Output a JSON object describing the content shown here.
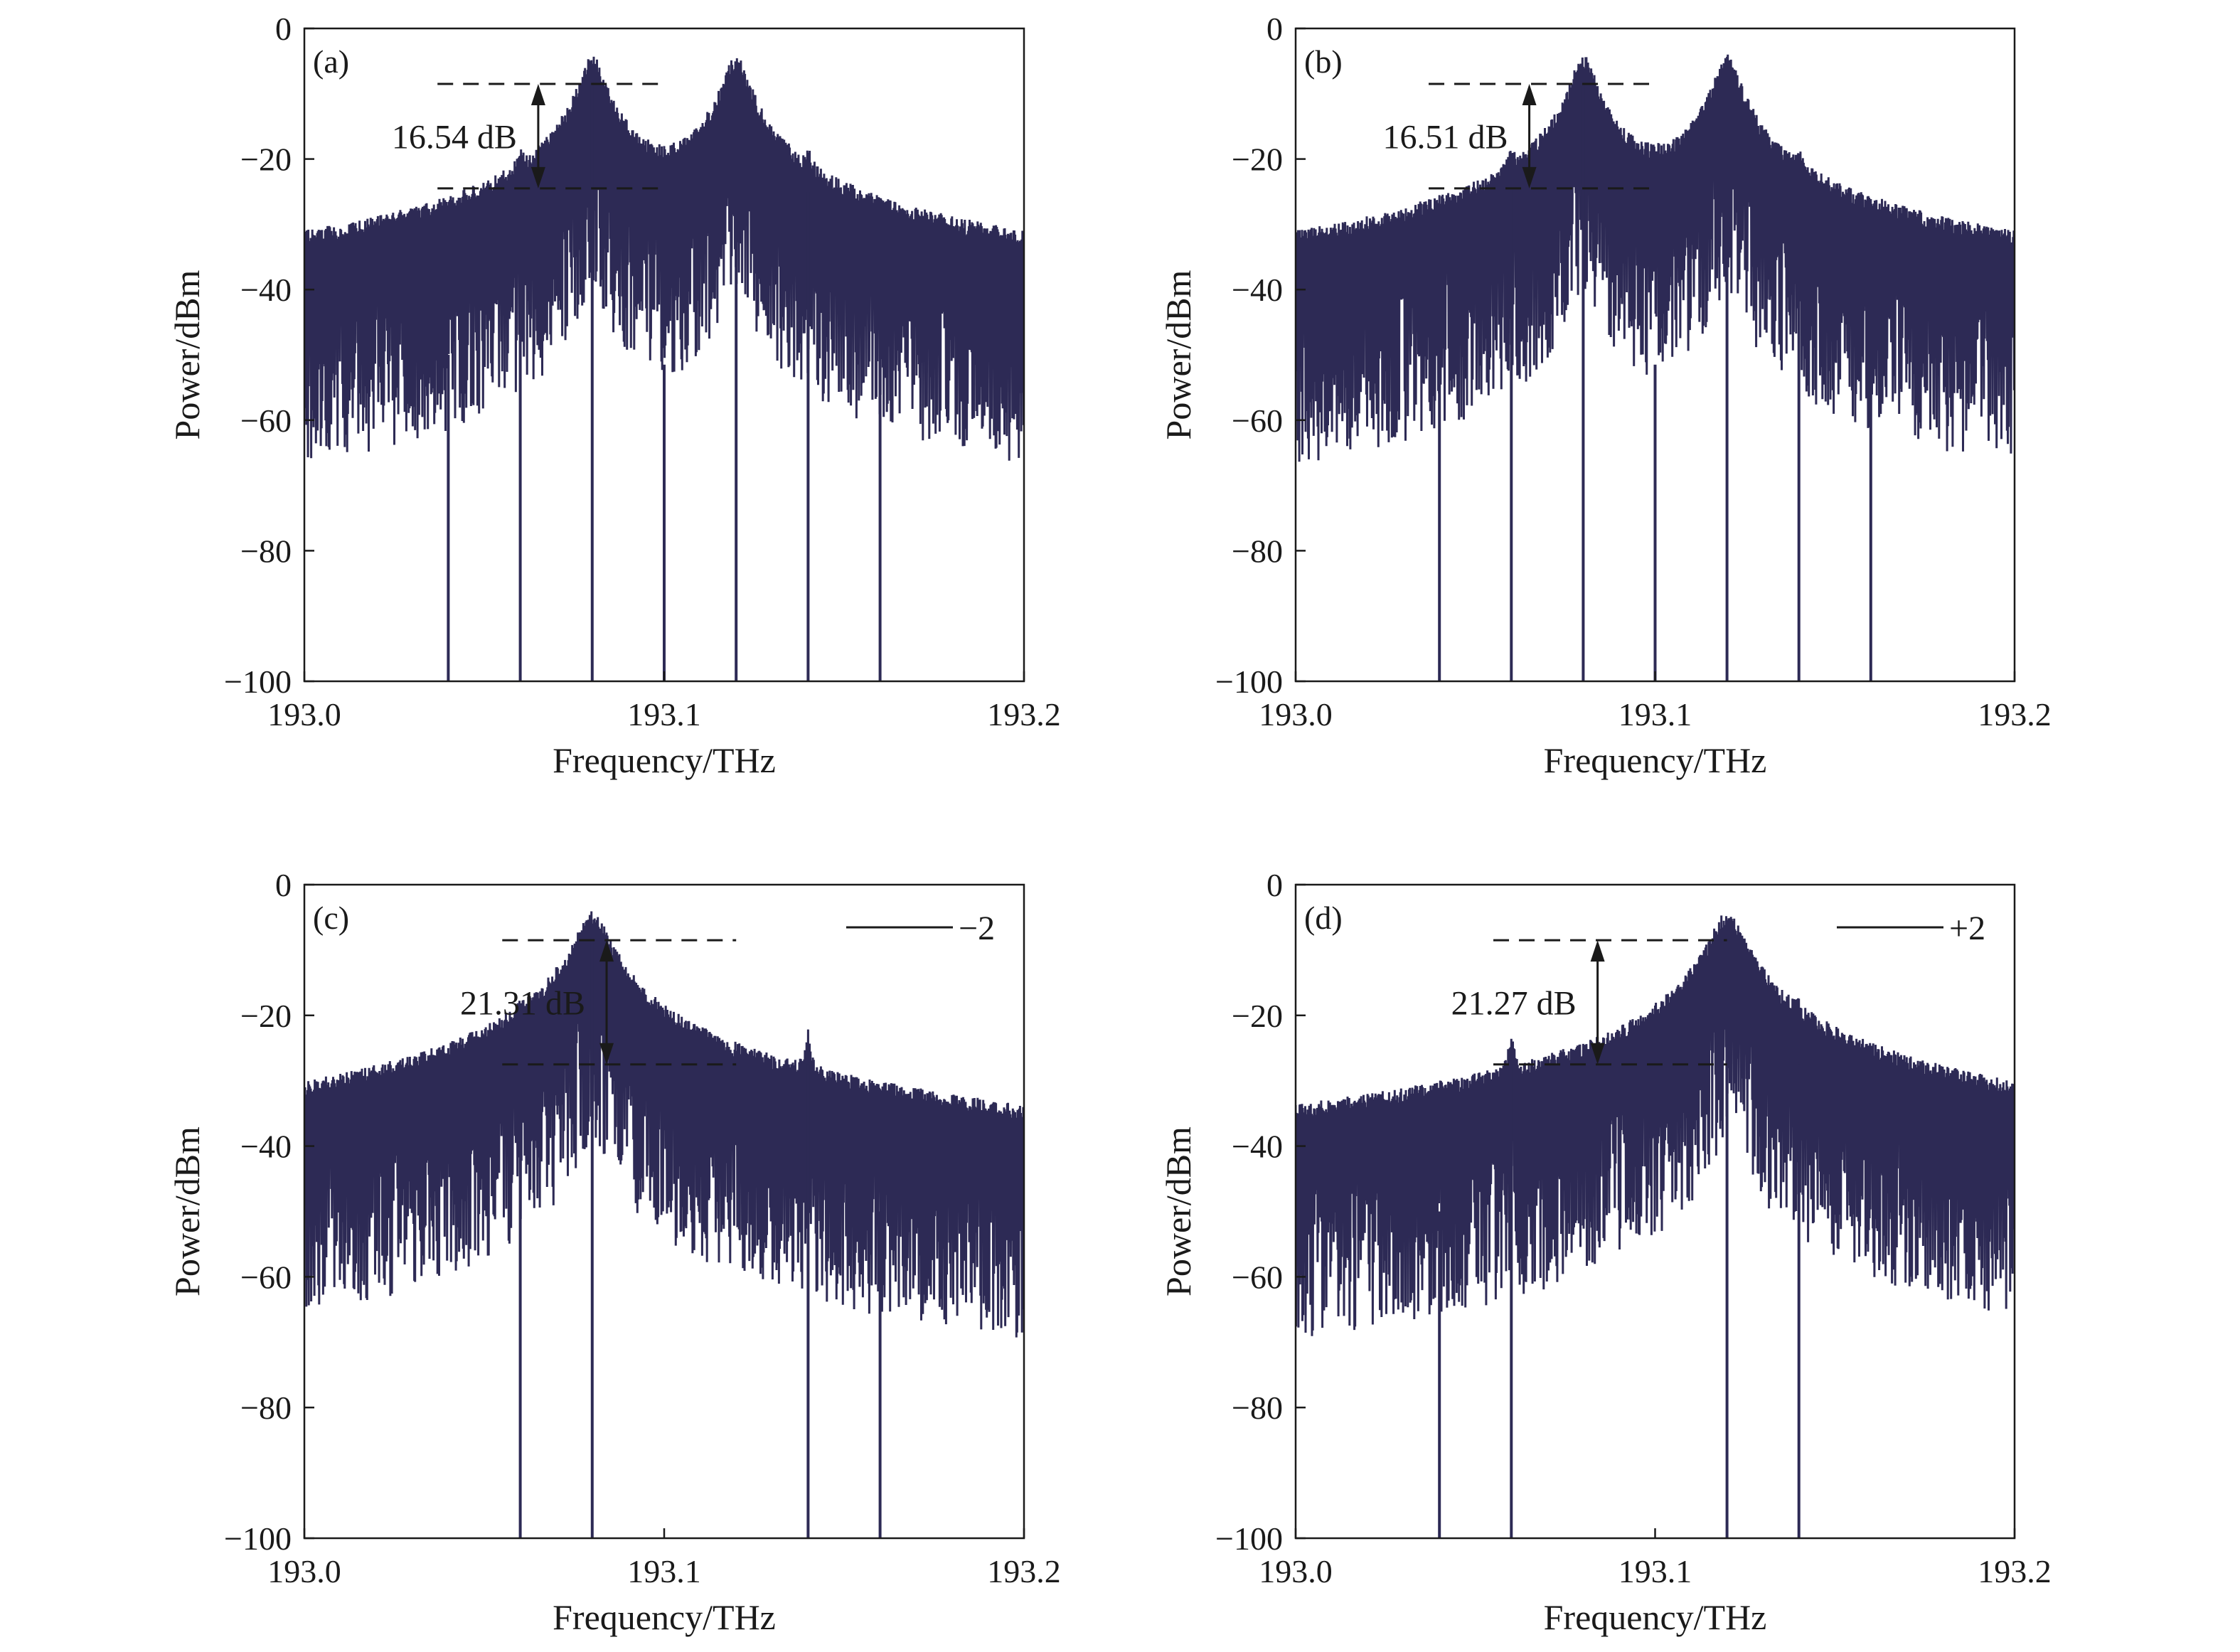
{
  "colors": {
    "spectrum": "#2d2a55",
    "axis": "#1a1a1a",
    "background": "#ffffff"
  },
  "chart_data": [
    {
      "type": "line",
      "panel_label": "(a)",
      "xlabel": "Frequency/THz",
      "ylabel": "Power/dBm",
      "xlim": [
        193.0,
        193.2
      ],
      "ylim": [
        -100,
        0
      ],
      "xticks": [
        "193.0",
        "193.1",
        "193.2"
      ],
      "yticks": [
        "0",
        "−20",
        "−40",
        "−60",
        "−80",
        "−100"
      ],
      "noise_floor_dBm": -85,
      "peaks": [
        {
          "x": 193.04,
          "y": -50,
          "width": 0.0003
        },
        {
          "x": 193.06,
          "y": -25,
          "width": 0.0006
        },
        {
          "x": 193.08,
          "y": -8,
          "width": 0.003
        },
        {
          "x": 193.1,
          "y": -51.5,
          "width": 0.0003
        },
        {
          "x": 193.12,
          "y": -8,
          "width": 0.003
        },
        {
          "x": 193.14,
          "y": -25,
          "width": 0.0006
        },
        {
          "x": 193.16,
          "y": -50,
          "width": 0.0003
        }
      ],
      "annotation": {
        "text": "16.54 dB",
        "upper_dBm": -8.5,
        "lower_dBm": -24.5,
        "x_from": 193.037,
        "x_to": 193.1,
        "arrow_x": 193.065
      },
      "legend": null
    },
    {
      "type": "line",
      "panel_label": "(b)",
      "xlabel": "Frequency/THz",
      "ylabel": "Power/dBm",
      "xlim": [
        193.0,
        193.2
      ],
      "ylim": [
        -100,
        0
      ],
      "xticks": [
        "193.0",
        "193.1",
        "193.2"
      ],
      "yticks": [
        "0",
        "−20",
        "−40",
        "−60",
        "−80",
        "−100"
      ],
      "noise_floor_dBm": -85,
      "peaks": [
        {
          "x": 193.04,
          "y": -50,
          "width": 0.0003
        },
        {
          "x": 193.06,
          "y": -24.5,
          "width": 0.0006
        },
        {
          "x": 193.08,
          "y": -8,
          "width": 0.003
        },
        {
          "x": 193.1,
          "y": -51.5,
          "width": 0.0003
        },
        {
          "x": 193.12,
          "y": -8,
          "width": 0.003
        },
        {
          "x": 193.14,
          "y": -24.5,
          "width": 0.0006
        },
        {
          "x": 193.16,
          "y": -50,
          "width": 0.0003
        }
      ],
      "annotation": {
        "text": "16.51 dB",
        "upper_dBm": -8.5,
        "lower_dBm": -24.5,
        "x_from": 193.037,
        "x_to": 193.1,
        "arrow_x": 193.065
      },
      "legend": null
    },
    {
      "type": "line",
      "panel_label": "(c)",
      "xlabel": "Frequency/THz",
      "ylabel": "Power/dBm",
      "xlim": [
        193.0,
        193.2
      ],
      "ylim": [
        -100,
        0
      ],
      "xticks": [
        "193.0",
        "193.1",
        "193.2"
      ],
      "yticks": [
        "0",
        "−20",
        "−40",
        "−60",
        "−80",
        "−100"
      ],
      "noise_floor_dBm": -78,
      "peaks": [
        {
          "x": 193.06,
          "y": -27.5,
          "width": 0.0006
        },
        {
          "x": 193.08,
          "y": -8,
          "width": 0.004
        },
        {
          "x": 193.14,
          "y": -27.5,
          "width": 0.0006
        },
        {
          "x": 193.16,
          "y": -50,
          "width": 0.0003
        }
      ],
      "annotation": {
        "text": "21.31 dB",
        "upper_dBm": -8.5,
        "lower_dBm": -27.5,
        "x_from": 193.055,
        "x_to": 193.12,
        "arrow_x": 193.084
      },
      "legend": {
        "text": "−2"
      }
    },
    {
      "type": "line",
      "panel_label": "(d)",
      "xlabel": "Frequency/THz",
      "ylabel": "Power/dBm",
      "xlim": [
        193.0,
        193.2
      ],
      "ylim": [
        -100,
        0
      ],
      "xticks": [
        "193.0",
        "193.1",
        "193.2"
      ],
      "yticks": [
        "0",
        "−20",
        "−40",
        "−60",
        "−80",
        "−100"
      ],
      "noise_floor_dBm": -78,
      "peaks": [
        {
          "x": 193.04,
          "y": -50,
          "width": 0.0003
        },
        {
          "x": 193.06,
          "y": -27.5,
          "width": 0.0006
        },
        {
          "x": 193.12,
          "y": -8,
          "width": 0.004
        },
        {
          "x": 193.14,
          "y": -27.5,
          "width": 0.0006
        }
      ],
      "annotation": {
        "text": "21.27 dB",
        "upper_dBm": -8.5,
        "lower_dBm": -27.5,
        "x_from": 193.055,
        "x_to": 193.12,
        "arrow_x": 193.084
      },
      "legend": {
        "text": "+2"
      }
    }
  ]
}
